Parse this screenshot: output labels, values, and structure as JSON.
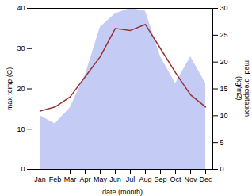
{
  "chart_data": {
    "type": "line",
    "xlabel": "date (month)",
    "ylabel": "max temp (C)",
    "y2label": "med. precipitation\n(kg/m2)",
    "categories": [
      "Jan",
      "Feb",
      "Mar",
      "Apr",
      "May",
      "Jun",
      "Jul",
      "Aug",
      "Sep",
      "Oct",
      "Nov",
      "Dec"
    ],
    "series": [
      {
        "type": "area",
        "axis": "y2",
        "color": "#b0baf0",
        "values": [
          10.0,
          8.5,
          11.5,
          17.5,
          26.5,
          29.0,
          30.0,
          29.5,
          21.0,
          16.0,
          21.0,
          16.0
        ]
      },
      {
        "type": "line",
        "color": "#993333",
        "values": [
          14.5,
          15.5,
          18.0,
          23.0,
          28.0,
          35.0,
          34.5,
          36.0,
          30.0,
          24.0,
          18.5,
          15.5
        ]
      }
    ],
    "ylim": [
      0,
      40
    ],
    "yticks": [
      0,
      10,
      20,
      30,
      40
    ],
    "y2lim": [
      0,
      30
    ],
    "y2ticks": [
      0,
      5,
      10,
      15,
      20,
      25,
      30
    ],
    "grid": false
  }
}
